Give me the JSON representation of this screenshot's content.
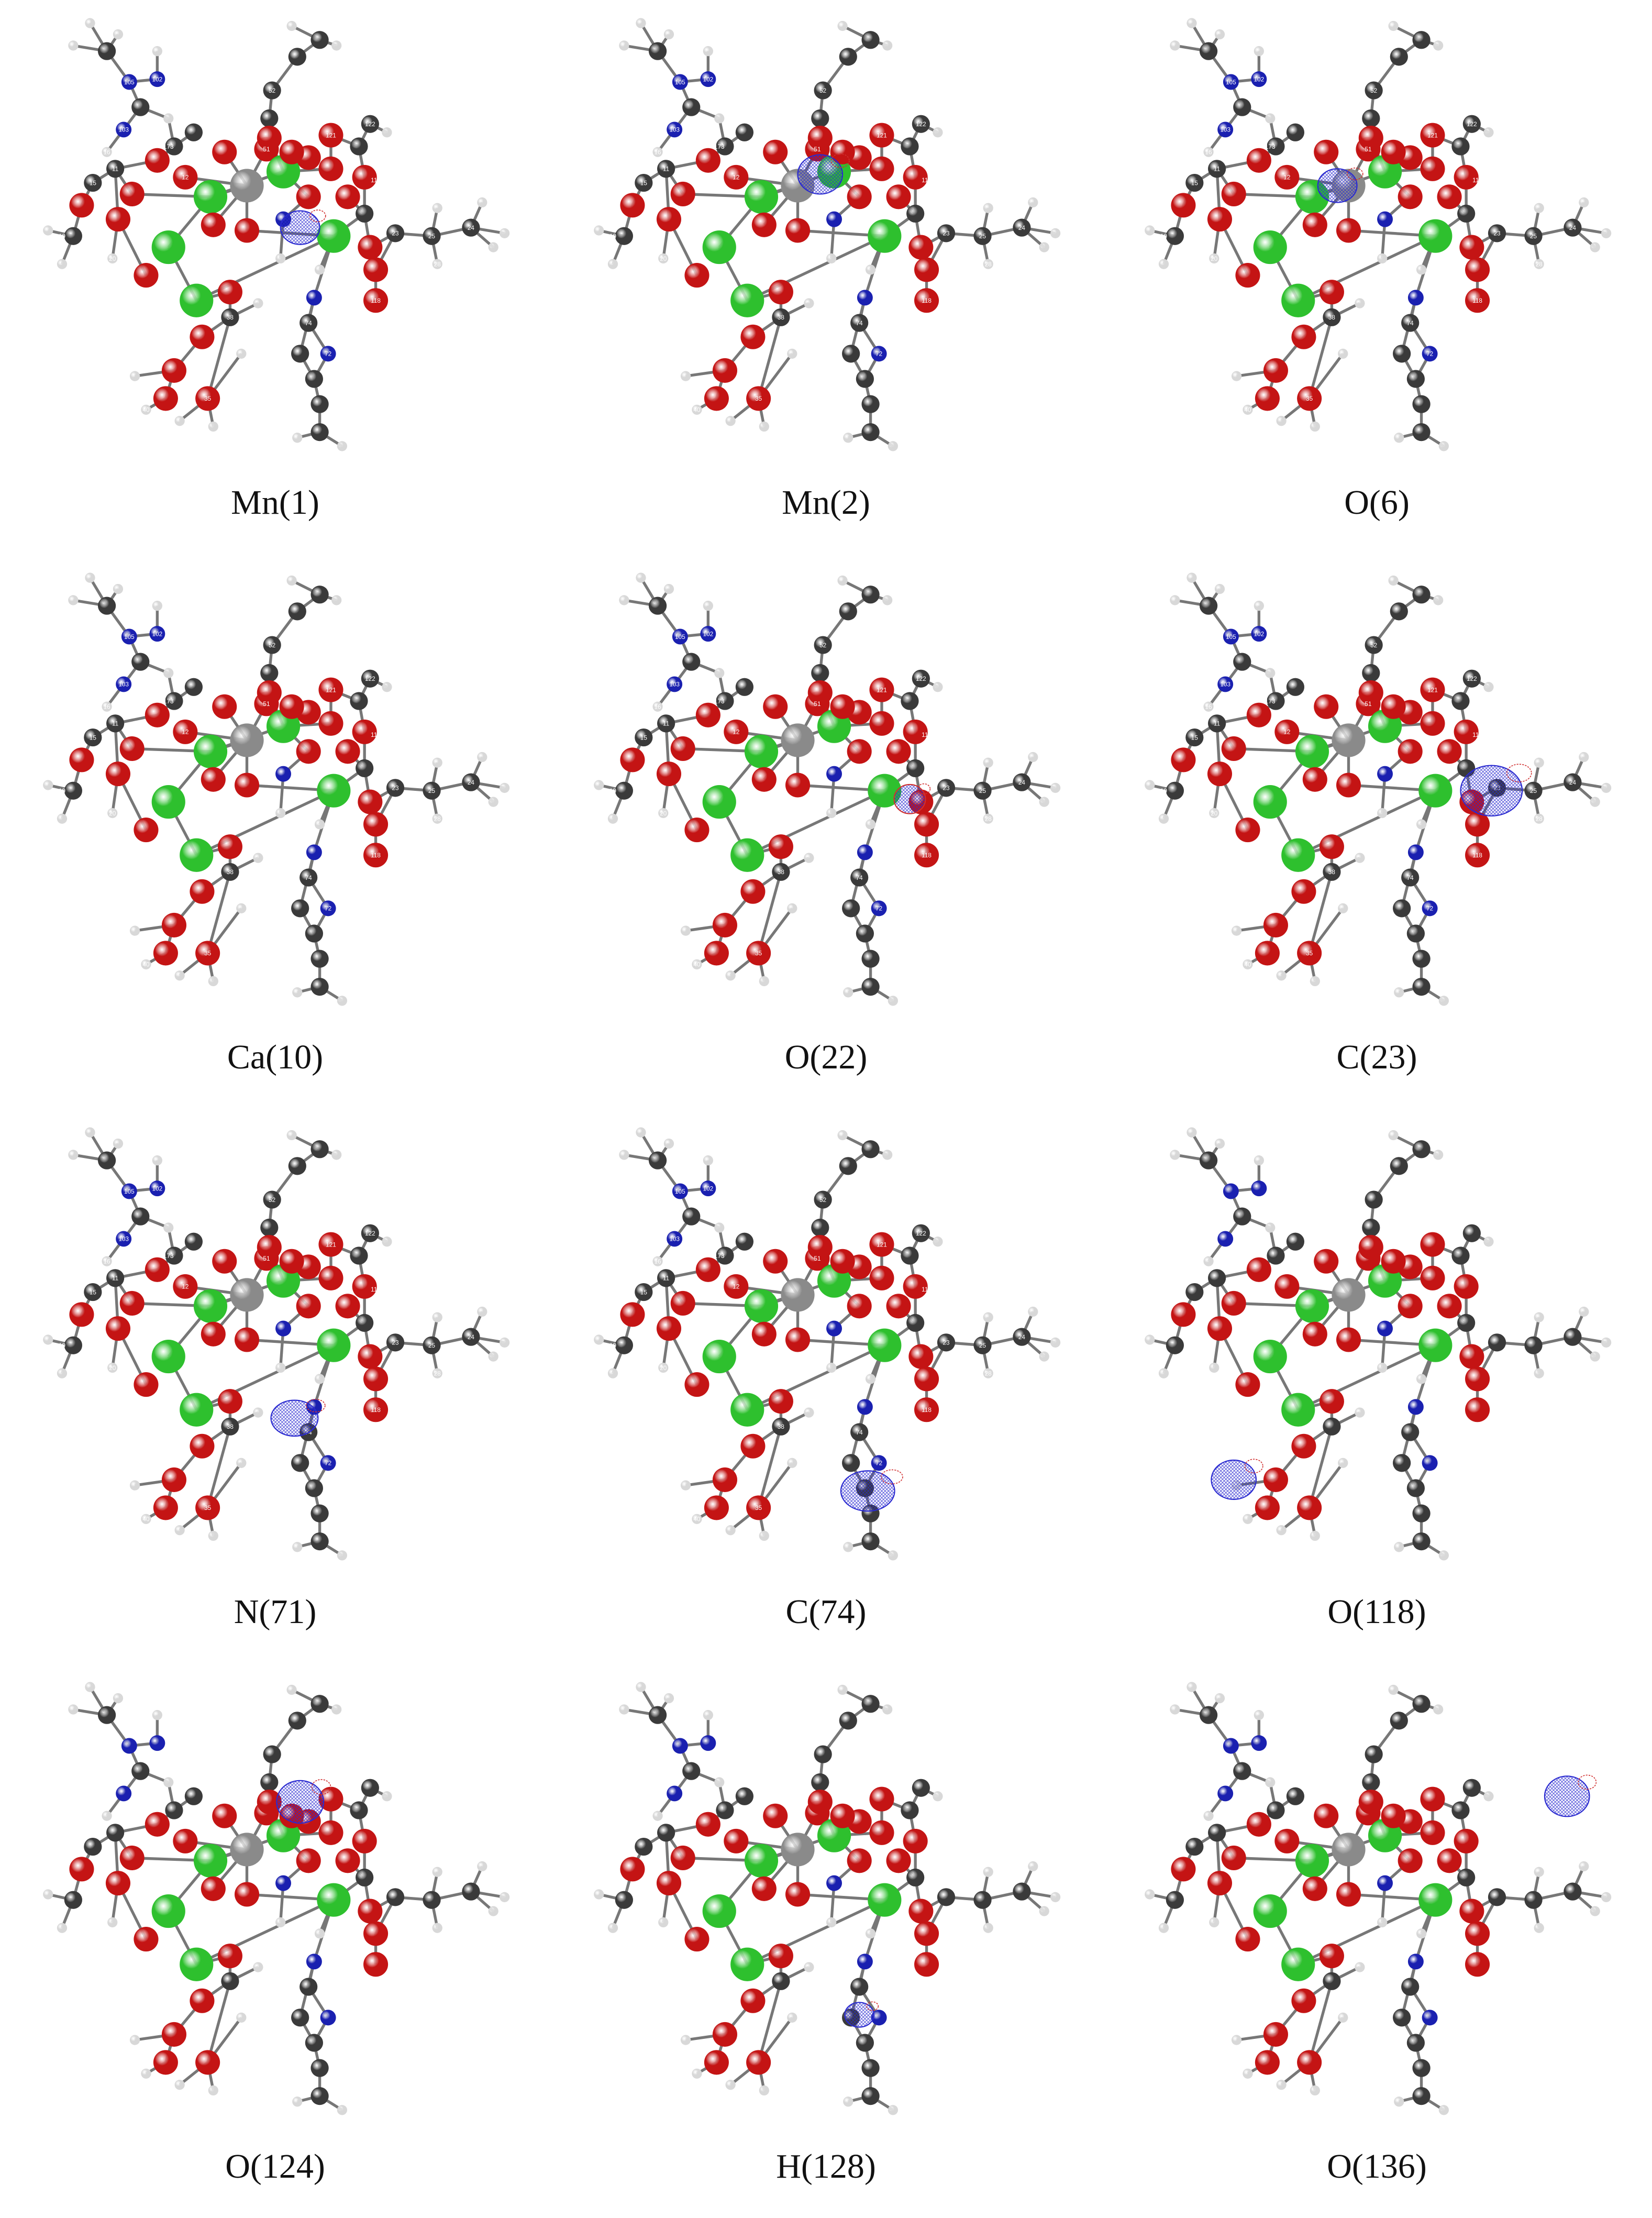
{
  "panels": [
    {
      "label": "Mn(1)",
      "highlight": "a",
      "labels_visible": true
    },
    {
      "label": "Mn(2)",
      "highlight": "b",
      "labels_visible": true
    },
    {
      "label": "O(6)",
      "highlight": "c",
      "labels_visible": true
    },
    {
      "label": "Ca(10)",
      "highlight": "",
      "labels_visible": true
    },
    {
      "label": "O(22)",
      "highlight": "d",
      "labels_visible": true
    },
    {
      "label": "C(23)",
      "highlight": "e",
      "labels_visible": true
    },
    {
      "label": "N(71)",
      "highlight": "f",
      "labels_visible": true
    },
    {
      "label": "C(74)",
      "highlight": "g",
      "labels_visible": true
    },
    {
      "label": "O(118)",
      "highlight": "h",
      "labels_visible": false
    },
    {
      "label": "O(124)",
      "highlight": "i",
      "labels_visible": false
    },
    {
      "label": "H(128)",
      "highlight": "j",
      "labels_visible": false
    },
    {
      "label": "O(136)",
      "highlight": "k",
      "labels_visible": false
    }
  ],
  "atom_numbers": [
    "105",
    "102",
    "103",
    "12",
    "16",
    "173",
    "15",
    "11",
    "19",
    "20",
    "52",
    "51",
    "121",
    "122",
    "113",
    "74",
    "118",
    "25",
    "24",
    "23",
    "28",
    "72",
    "40",
    "35",
    "38"
  ],
  "colors": {
    "carbon": "#3a3a3a",
    "oxygen": "#c41414",
    "nitrogen": "#1a20b0",
    "hydrogen": "#d8d8d8",
    "calcium": "#2ec02e",
    "manganese": "#8a8a8a",
    "mesh_blue": "#2a2ad0",
    "mesh_red": "#d03030"
  }
}
